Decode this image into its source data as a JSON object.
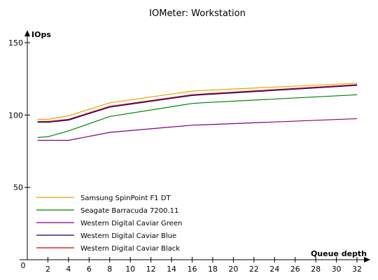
{
  "chart_data": {
    "type": "line",
    "title": "IOMeter: Workstation",
    "ylabel": "IOps",
    "xlabel": "Queue depth",
    "ylim": [
      0,
      150
    ],
    "xlim": [
      0,
      32
    ],
    "yticks": [
      0,
      50,
      100,
      150
    ],
    "xticks": [
      2,
      4,
      6,
      8,
      10,
      12,
      14,
      16,
      18,
      20,
      22,
      24,
      26,
      28,
      30,
      32
    ],
    "origin_label": "0",
    "grid": false,
    "legend_position": "bottom-left",
    "x": [
      1,
      2,
      4,
      8,
      16,
      17,
      32
    ],
    "series": [
      {
        "name": "Samsung SpinPoint F1 DT",
        "color": "#e8a000",
        "values": [
          97,
          97,
          99.5,
          108.5,
          116.5,
          117,
          122
        ]
      },
      {
        "name": "Seagate Barracuda 7200.11",
        "color": "#008000",
        "values": [
          84.5,
          85,
          89,
          99,
          108,
          108.5,
          114
        ]
      },
      {
        "name": "Western Digital Caviar Green",
        "color": "#800080",
        "values": [
          82.5,
          82.5,
          82.5,
          88,
          93,
          93.2,
          97.5
        ]
      },
      {
        "name": "Western Digital Caviar Blue",
        "color": "#000080",
        "values": [
          95,
          95,
          96.5,
          105.5,
          113.5,
          114,
          120.5
        ]
      },
      {
        "name": "Western Digital Caviar Black",
        "color": "#d00000",
        "values": [
          95.5,
          95.5,
          97,
          106,
          114,
          114.5,
          121
        ]
      }
    ]
  }
}
